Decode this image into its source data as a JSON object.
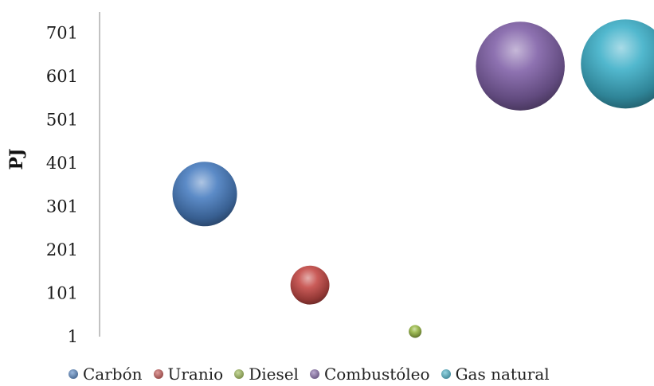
{
  "chart_data": {
    "type": "bubble",
    "title": "",
    "xlabel": "",
    "ylabel": "PJ",
    "ylim": [
      1,
      761
    ],
    "yticks": [
      "1",
      "101",
      "201",
      "301",
      "401",
      "501",
      "601",
      "701"
    ],
    "xlim": [
      0,
      700
    ],
    "grid": false,
    "legend": "bottom",
    "series": [
      {
        "name": "Carbón",
        "x": 130,
        "y": 330,
        "size": 330,
        "color": "#4a7ec1"
      },
      {
        "name": "Uranio",
        "x": 260,
        "y": 120,
        "size": 120,
        "color": "#c44a47"
      },
      {
        "name": "Diesel",
        "x": 390,
        "y": 13,
        "size": 13,
        "color": "#9ab94a"
      },
      {
        "name": "Combustóleo",
        "x": 520,
        "y": 625,
        "size": 625,
        "color": "#8162a8"
      },
      {
        "name": "Gas natural",
        "x": 650,
        "y": 630,
        "size": 630,
        "color": "#3fb0c9"
      }
    ]
  }
}
